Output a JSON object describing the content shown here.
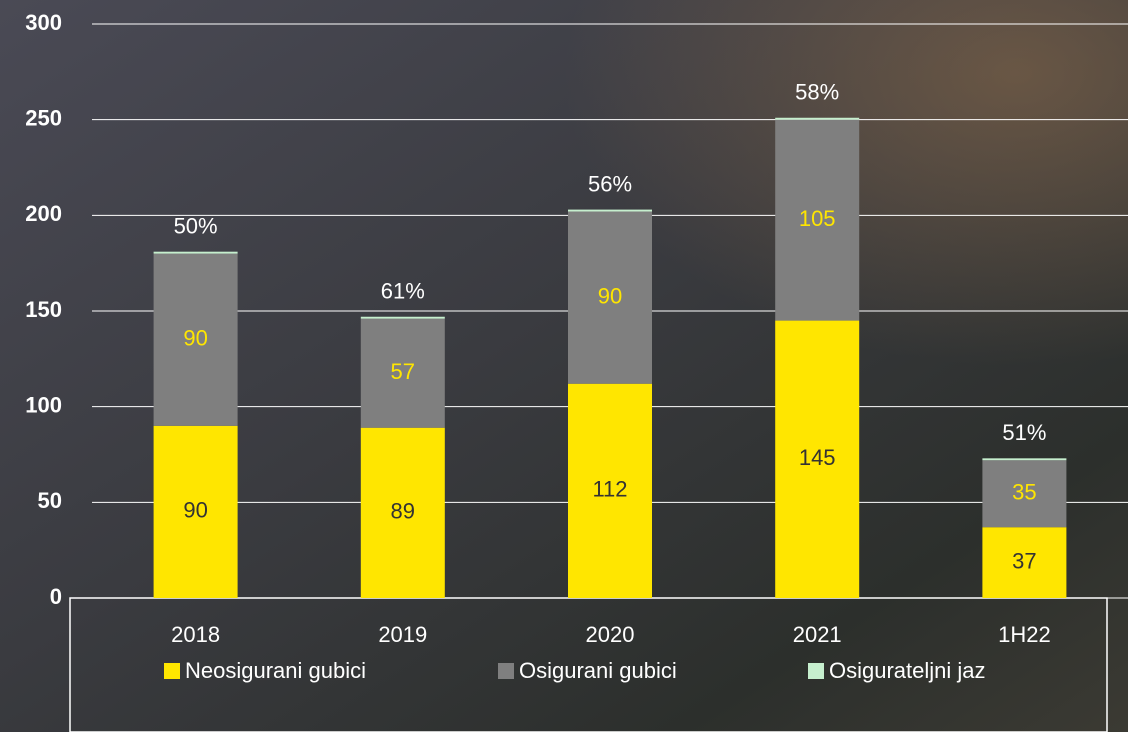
{
  "chart_data": {
    "type": "bar",
    "stacked": true,
    "categories": [
      "2018",
      "2019",
      "2020",
      "2021",
      "1H22"
    ],
    "series": [
      {
        "name": "Neosigurani gubici",
        "color": "#ffe600",
        "values": [
          90,
          89,
          112,
          145,
          37
        ]
      },
      {
        "name": "Osigurani gubici",
        "color": "#7f7f7f",
        "values": [
          90,
          57,
          90,
          105,
          35
        ]
      },
      {
        "name": "Osigurateljni jaz",
        "color": "#c6efce",
        "values": [
          1,
          1,
          1,
          1,
          1
        ]
      }
    ],
    "gap_share_labels": [
      "50%",
      "61%",
      "56%",
      "58%",
      "51%"
    ],
    "ylim": [
      0,
      300
    ],
    "yticks": [
      0,
      50,
      100,
      150,
      200,
      250,
      300
    ],
    "grid": true,
    "legend": "bottom"
  }
}
